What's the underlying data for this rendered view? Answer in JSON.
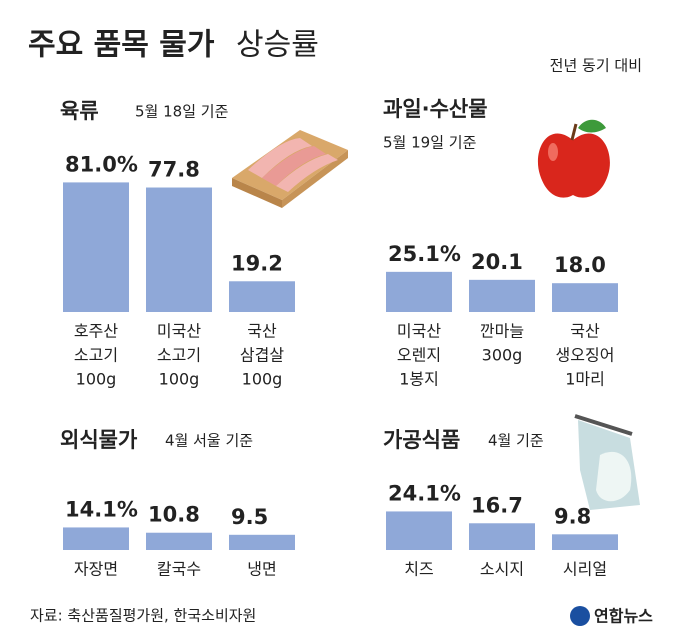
{
  "title": "주요 품목 물가",
  "title_suffix": "상승률",
  "note": "전년 동기 대비",
  "source": "자료: 축산품질평가원, 한국소비자원",
  "logo": "연합뉴스",
  "chart_data": [
    {
      "type": "bar",
      "title": "육류",
      "subtitle": "5월 18일 기준",
      "color": "#8fa8d8",
      "categories": [
        [
          "호주산",
          "소고기",
          "100g"
        ],
        [
          "미국산",
          "소고기",
          "100g"
        ],
        [
          "국산",
          "삼겹살",
          "100g"
        ]
      ],
      "values": [
        81.0,
        77.8,
        19.2
      ],
      "value_labels": [
        "81.0%",
        "77.8",
        "19.2"
      ]
    },
    {
      "type": "bar",
      "title": "과일·수산물",
      "subtitle": "5월 19일 기준",
      "color": "#8fa8d8",
      "categories": [
        [
          "미국산",
          "오렌지",
          "1봉지"
        ],
        [
          "깐마늘",
          "300g"
        ],
        [
          "국산",
          "생오징어",
          "1마리"
        ]
      ],
      "values": [
        25.1,
        20.1,
        18.0
      ],
      "value_labels": [
        "25.1%",
        "20.1",
        "18.0"
      ]
    },
    {
      "type": "bar",
      "title": "외식물가",
      "subtitle": "4월 서울 기준",
      "color": "#8fa8d8",
      "categories": [
        [
          "자장면"
        ],
        [
          "칼국수"
        ],
        [
          "냉면"
        ]
      ],
      "values": [
        14.1,
        10.8,
        9.5
      ],
      "value_labels": [
        "14.1%",
        "10.8",
        "9.5"
      ]
    },
    {
      "type": "bar",
      "title": "가공식품",
      "subtitle": "4월 기준",
      "color": "#8fa8d8",
      "categories": [
        [
          "치즈"
        ],
        [
          "소시지"
        ],
        [
          "시리얼"
        ]
      ],
      "values": [
        24.1,
        16.7,
        9.8
      ],
      "value_labels": [
        "24.1%",
        "16.7",
        "9.8"
      ]
    }
  ]
}
